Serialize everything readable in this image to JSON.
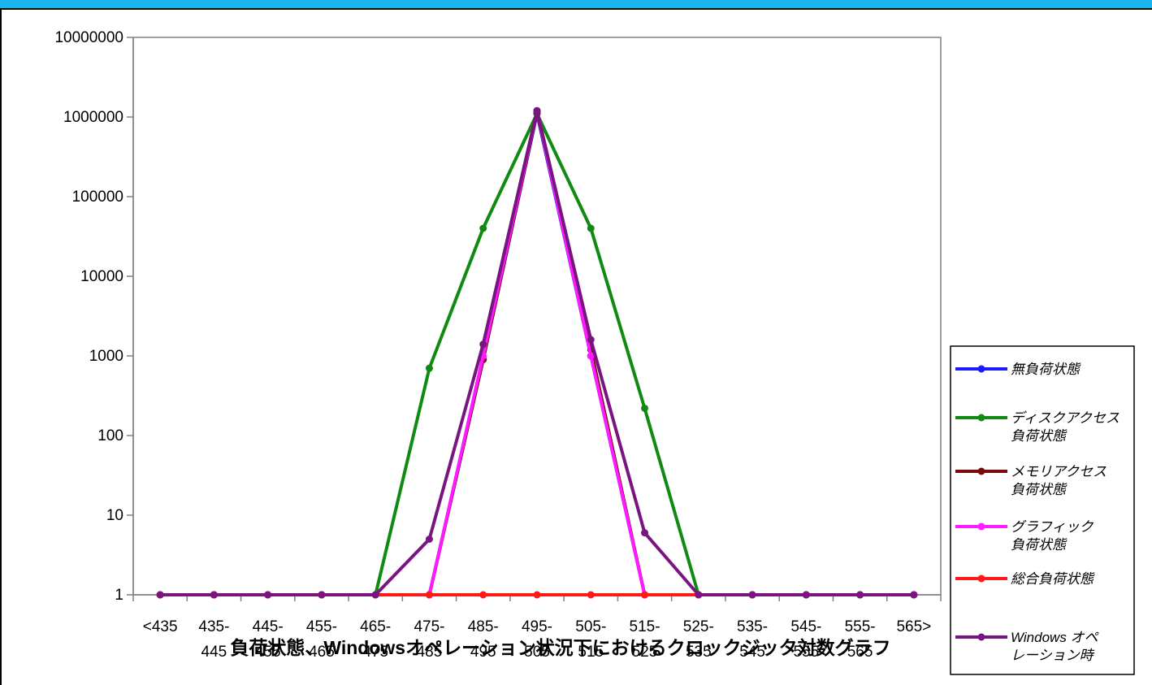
{
  "chart_data": {
    "type": "line",
    "title": "負荷状態、Windowsオペレーション状況下におけるクロックジッタ対数グラフ",
    "xlabel": "",
    "ylabel": "",
    "y_scale": "log",
    "ylim": [
      1,
      10000000
    ],
    "y_ticks": [
      "1",
      "10",
      "100",
      "1000",
      "10000",
      "100000",
      "1000000",
      "10000000"
    ],
    "categories": [
      "<435",
      "435-445",
      "445-455",
      "455-465",
      "465-475",
      "475-485",
      "485-495",
      "495-505",
      "505-515",
      "515-525",
      "525-535",
      "535-545",
      "545-555",
      "555-565",
      "565>"
    ],
    "tick_labels": [
      {
        "top": "<435",
        "bottom": ""
      },
      {
        "top": "435-",
        "bottom": "445"
      },
      {
        "top": "445-",
        "bottom": "455"
      },
      {
        "top": "455-",
        "bottom": "465"
      },
      {
        "top": "465-",
        "bottom": "475"
      },
      {
        "top": "475-",
        "bottom": "485"
      },
      {
        "top": "485-",
        "bottom": "495"
      },
      {
        "top": "495-",
        "bottom": "505"
      },
      {
        "top": "505-",
        "bottom": "515"
      },
      {
        "top": "515-",
        "bottom": "525"
      },
      {
        "top": "525-",
        "bottom": "535"
      },
      {
        "top": "535-",
        "bottom": "545"
      },
      {
        "top": "545-",
        "bottom": "555"
      },
      {
        "top": "555-",
        "bottom": "565"
      },
      {
        "top": "565>",
        "bottom": ""
      }
    ],
    "grid": false,
    "legend_position": "right",
    "series": [
      {
        "name": "無負荷状態",
        "legend_lines": [
          "無負荷状態"
        ],
        "color": "#1a1aff",
        "values": [
          1,
          1,
          1,
          1,
          1,
          1,
          900,
          1100000,
          1000,
          1,
          1,
          1,
          1,
          1,
          1
        ]
      },
      {
        "name": "ディスクアクセス負荷状態",
        "legend_lines": [
          "ディスクアクセス",
          "負荷状態"
        ],
        "color": "#118a11",
        "values": [
          1,
          1,
          1,
          1,
          1,
          700,
          40000,
          1100000,
          40000,
          220,
          1,
          1,
          1,
          1,
          1
        ]
      },
      {
        "name": "メモリアクセス負荷状態",
        "legend_lines": [
          "メモリアクセス",
          "負荷状態"
        ],
        "color": "#7b0a0a",
        "values": [
          1,
          1,
          1,
          1,
          1,
          1,
          900,
          1150000,
          1200,
          1,
          1,
          1,
          1,
          1,
          1
        ]
      },
      {
        "name": "グラフィック負荷状態",
        "legend_lines": [
          "グラフィック",
          "負荷状態"
        ],
        "color": "#ff1aff",
        "values": [
          1,
          1,
          1,
          1,
          1,
          1,
          1000,
          1200000,
          1000,
          1,
          1,
          1,
          1,
          1,
          1
        ]
      },
      {
        "name": "総合負荷状態",
        "legend_lines": [
          "総合負荷状態"
        ],
        "color": "#ff1a1a",
        "values": [
          1,
          1,
          1,
          1,
          1,
          1,
          1,
          1,
          1,
          1,
          1,
          1,
          1,
          1,
          1
        ]
      },
      {
        "name": "Windowsオペレーション時",
        "legend_lines": [
          "Windows オペ",
          "レーション時"
        ],
        "color": "#7a1480",
        "values": [
          1,
          1,
          1,
          1,
          1,
          5,
          1400,
          1200000,
          1600,
          6,
          1,
          1,
          1,
          1,
          1
        ]
      }
    ]
  }
}
